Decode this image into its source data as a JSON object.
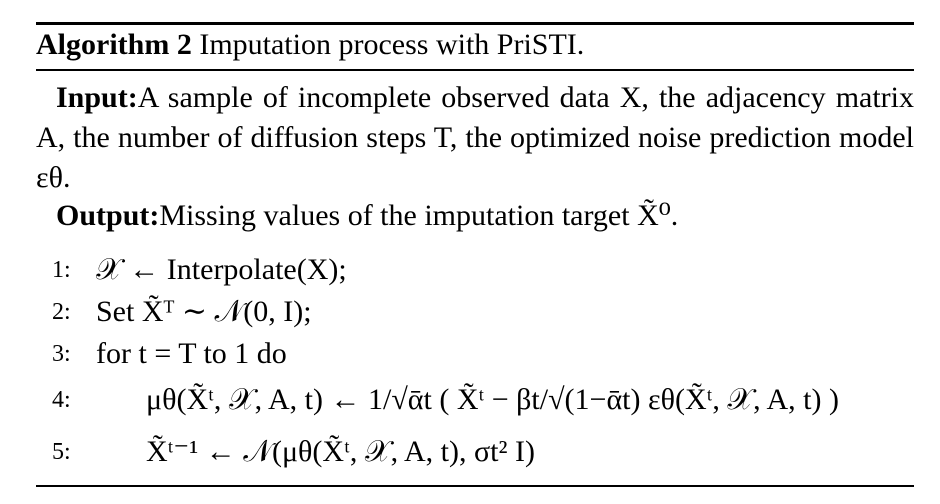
{
  "caption": {
    "label": "Algorithm 2",
    "text": "Imputation process with PriSTI."
  },
  "input": {
    "label": "Input:",
    "text": "A sample of incomplete observed data X, the adjacency matrix A, the number of diffusion steps T, the optimized noise prediction model εθ."
  },
  "output": {
    "label": "Output:",
    "text": "Missing values of the imputation target X̃⁰."
  },
  "steps": [
    {
      "num": "1:",
      "text": "𝒳 ← Interpolate(X);"
    },
    {
      "num": "2:",
      "text": "Set X̃ᵀ ∼ 𝒩(0, I);"
    },
    {
      "num": "3:",
      "text": "for t = T to 1 do"
    },
    {
      "num": "4:",
      "text": "μθ(X̃ᵗ, 𝒳, A, t) ← 1/√ᾱt ( X̃ᵗ − βt/√(1−ᾱt) εθ(X̃ᵗ, 𝒳, A, t) )"
    },
    {
      "num": "5:",
      "text": "X̃ᵗ⁻¹ ← 𝒩(μθ(X̃ᵗ, 𝒳, A, t), σt² I)"
    }
  ]
}
